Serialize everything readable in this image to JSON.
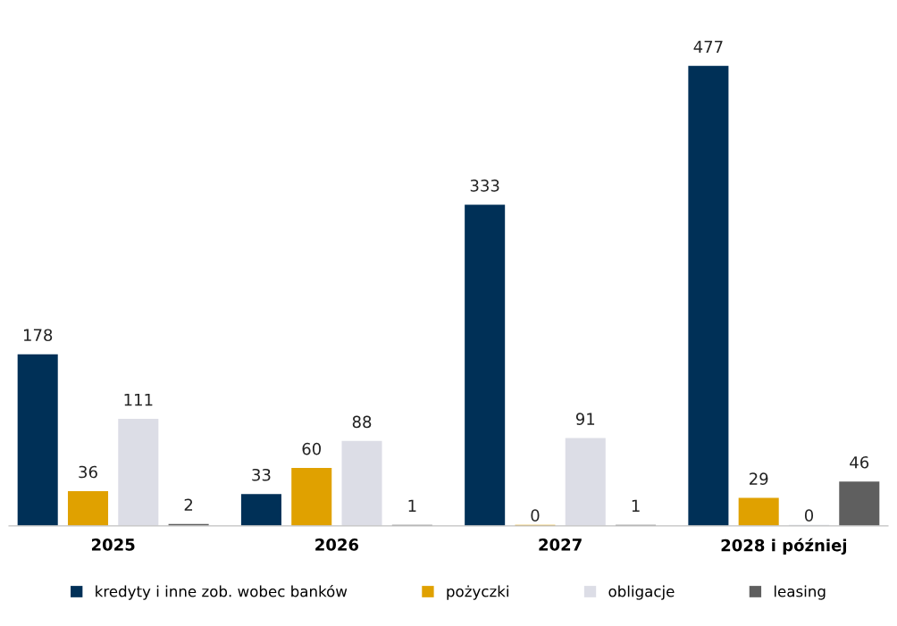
{
  "chart_data": {
    "type": "bar",
    "categories": [
      "2025",
      "2026",
      "2027",
      "2028 i później"
    ],
    "series": [
      {
        "name": "kredyty i inne zob. wobec banków",
        "color": "#003057",
        "values": [
          178,
          33,
          333,
          477
        ]
      },
      {
        "name": "pożyczki",
        "color": "#e0a100",
        "values": [
          36,
          60,
          0,
          29
        ]
      },
      {
        "name": "obligacje",
        "color": "#dcdde6",
        "values": [
          111,
          88,
          91,
          0
        ]
      },
      {
        "name": "leasing",
        "color": "#5f5f5f",
        "values": [
          2,
          1,
          1,
          46
        ]
      }
    ],
    "data_labels": true,
    "legend": "bottom",
    "grid": false
  }
}
